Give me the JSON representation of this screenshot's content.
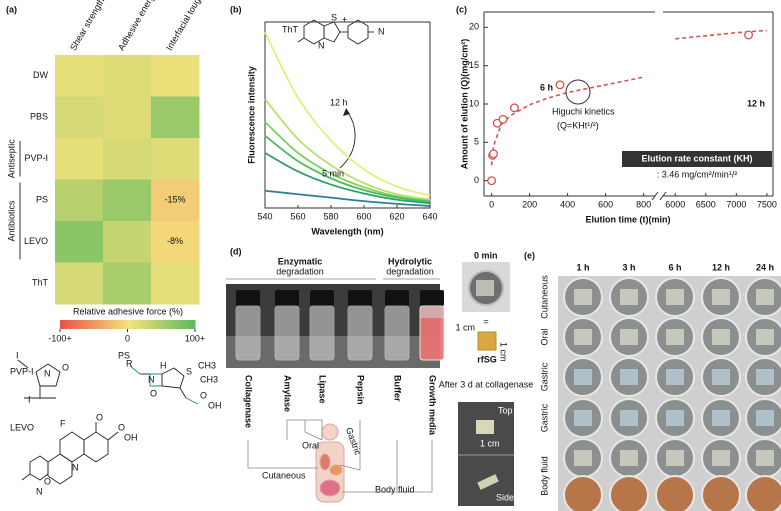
{
  "chart_data": [
    {
      "type": "heatmap",
      "label": "(a)",
      "rows": [
        "DW",
        "PBS",
        "PVP-I",
        "PS",
        "LEVO",
        "ThT"
      ],
      "columns": [
        "Shear strength",
        "Adhesive energy density",
        "Interfacial toughness"
      ],
      "groups": [
        {
          "name": "Antiseptic",
          "rows": [
            2
          ]
        },
        {
          "name": "Antibiotics",
          "rows": [
            3,
            4
          ]
        }
      ],
      "values": [
        [
          10,
          15,
          5
        ],
        [
          20,
          15,
          60
        ],
        [
          10,
          20,
          15
        ],
        [
          40,
          60,
          -15
        ],
        [
          70,
          30,
          -8
        ],
        [
          20,
          50,
          10
        ]
      ],
      "value_labels": [
        [
          null,
          null,
          null
        ],
        [
          null,
          null,
          null
        ],
        [
          null,
          null,
          null
        ],
        [
          null,
          null,
          "-15%"
        ],
        [
          null,
          null,
          "-8%"
        ],
        [
          null,
          null,
          null
        ]
      ],
      "colors": [
        "#e8564b",
        "#f4e27c",
        "#5cb85c"
      ],
      "clim": [
        -100,
        100
      ],
      "colorbar_label": "Relative adhesive force (%)",
      "cticks": [
        {
          "value": -100,
          "label": "-100+"
        },
        0,
        {
          "value": 100,
          "label": "100+"
        }
      ]
    },
    {
      "type": "line",
      "label": "(b)",
      "x": [
        540,
        560,
        580,
        600,
        620,
        640
      ],
      "series": [
        {
          "color": "#e4ee7c",
          "values": [
            2550,
            1600,
            980,
            560,
            310,
            180
          ]
        },
        {
          "color": "#b8df6a",
          "values": [
            1580,
            1000,
            620,
            360,
            200,
            120
          ]
        },
        {
          "color": "#80cf5d",
          "values": [
            1250,
            800,
            500,
            300,
            170,
            100
          ]
        },
        {
          "color": "#4cbb5a",
          "values": [
            1050,
            680,
            430,
            260,
            150,
            90
          ]
        },
        {
          "color": "#2aa06a",
          "values": [
            800,
            530,
            340,
            210,
            120,
            70
          ]
        },
        {
          "color": "#2f7f98",
          "values": [
            250,
            200,
            150,
            100,
            60,
            30
          ]
        }
      ],
      "xlim": [
        540,
        640
      ],
      "ylim": [
        0,
        2700
      ],
      "xticks": [
        540,
        560,
        580,
        600,
        620,
        640
      ],
      "xlabel": "Wavelength (nm)",
      "ylabel": "Fluorescence intensity",
      "annotations": [
        "ThT",
        "12 h",
        "5 min"
      ],
      "structure_atoms": [
        "S",
        "N",
        "+",
        "N"
      ]
    },
    {
      "type": "scatter",
      "label": "(c)",
      "x": [
        0,
        5,
        10,
        30,
        60,
        120,
        360,
        7200
      ],
      "values": [
        0,
        3.3,
        3.5,
        7.5,
        8,
        9.5,
        12.5,
        19
      ],
      "color": "#d9534f",
      "fit": [
        {
          "x": [
            0,
            10,
            50,
            100,
            200,
            300,
            400,
            500,
            600,
            700,
            800
          ],
          "values": [
            2,
            4.5,
            7.3,
            8.5,
            9.9,
            10.8,
            11.5,
            12,
            12.5,
            13,
            13.5
          ]
        },
        {
          "x": [
            6000,
            6500,
            7000,
            7500
          ],
          "values": [
            18.5,
            18.9,
            19.3,
            19.6
          ]
        }
      ],
      "xlim_segments": [
        [
          -40,
          860
        ],
        [
          5800,
          7600
        ]
      ],
      "ylim": [
        -2,
        22
      ],
      "xticks": [
        0,
        200,
        400,
        600,
        800,
        6000,
        6500,
        7000,
        7500
      ],
      "yticks": [
        0,
        5,
        10,
        15,
        20
      ],
      "xlabel": "Elution time (t)(min)",
      "ylabel": "Amount of elution (Q)(mg/cm²)",
      "annotations": [
        "6 h",
        "12 h",
        "Higuchi kinetics",
        "(Q=KHt¹/²)"
      ],
      "box": {
        "title": "Elution rate constant (KH)",
        "value": ": 3.46 mg/cm²/min¹/²"
      }
    }
  ],
  "panel_a_structures": [
    {
      "name": "PVP-I",
      "atoms": [
        "I",
        "I",
        "N",
        "O"
      ]
    },
    {
      "name": "PS",
      "atoms": [
        "R",
        "N",
        "H",
        "S",
        "O",
        "O",
        "OH",
        "CH3",
        "CH3"
      ]
    },
    {
      "name": "LEVO",
      "atoms": [
        "F",
        "N",
        "N",
        "O",
        "O",
        "O",
        "OH"
      ]
    }
  ],
  "panel_d": {
    "label": "(d)",
    "groups": [
      {
        "title": "Enzymatic",
        "subtitle": "degradation"
      },
      {
        "title": "Hydrolytic",
        "subtitle": "degradation"
      }
    ],
    "media": [
      "Collagenase",
      "Amylase",
      "Lipase",
      "Pepsin",
      "Buffer",
      "Growth media"
    ],
    "routes": [
      "Oral",
      "Gastric",
      "Cutaneous",
      "Body fluid"
    ],
    "inset": {
      "time": "0 min",
      "equals": "=",
      "width": "1 cm",
      "height": "1 cm",
      "name": "rfSG"
    },
    "after": {
      "caption": "After 3 d at collagenase",
      "top": "Top",
      "scale": "1 cm",
      "side": "Side"
    }
  },
  "panel_e": {
    "label": "(e)",
    "times": [
      "1 h",
      "3 h",
      "6 h",
      "12 h",
      "24 h"
    ],
    "rows": [
      "Cutaneous",
      "Oral",
      "Gastric",
      "Gastric",
      "Body fluid"
    ]
  }
}
